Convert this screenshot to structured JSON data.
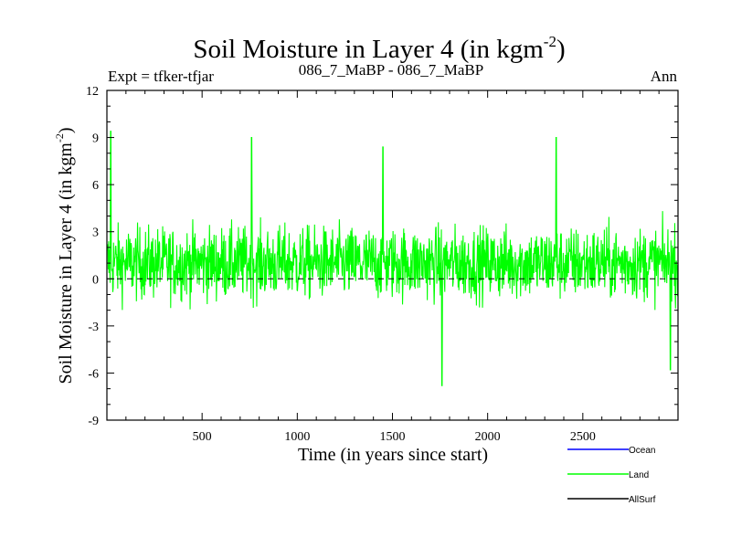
{
  "chart_data": {
    "type": "line",
    "title": "Soil Moisture in Layer 4 (in kgm",
    "title_superscript": "-2",
    "title_suffix": ")",
    "subtitle": "086_7_MaBP - 086_7_MaBP",
    "left_label": "Expt = tfker-tfjar",
    "right_label": "Ann",
    "xlabel": "Time (in years since start)",
    "ylabel": "Soil Moisture in Layer 4 (in kgm",
    "ylabel_superscript": "-2",
    "ylabel_suffix": ")",
    "xlim": [
      0,
      3000
    ],
    "ylim": [
      -9,
      12
    ],
    "x_ticks": [
      500,
      1000,
      1500,
      2000,
      2500
    ],
    "x_tick_labels": [
      "500",
      "1000",
      "1500",
      "2000",
      "2500"
    ],
    "y_ticks": [
      -9,
      -6,
      -3,
      0,
      3,
      6,
      9,
      12
    ],
    "y_tick_labels": [
      "-9",
      "-6",
      "-3",
      "0",
      "3",
      "6",
      "9",
      "12"
    ],
    "zero_line": "dashed",
    "grid": false,
    "legend_position": "bottom-right",
    "series": [
      {
        "name": "Ocean",
        "color": "#0000ff",
        "values": []
      },
      {
        "name": "Land",
        "color": "#00ff00",
        "values": "annual series, years 1-3000, approx. range -6.8 to 9.4, mean ~1"
      },
      {
        "name": "AllSurf",
        "color": "#000000",
        "values": []
      }
    ],
    "land_series_samples": {
      "x": [
        5,
        20,
        100,
        200,
        300,
        400,
        500,
        600,
        700,
        760,
        800,
        900,
        1000,
        1100,
        1200,
        1300,
        1400,
        1450,
        1500,
        1600,
        1700,
        1760,
        1800,
        1900,
        2000,
        2100,
        2200,
        2300,
        2360,
        2400,
        2500,
        2600,
        2700,
        2800,
        2900,
        2960,
        3000
      ],
      "y": [
        2,
        9.4,
        1.5,
        1,
        1.2,
        1,
        1.5,
        1.3,
        2,
        9,
        2,
        1.5,
        1,
        1.3,
        1.4,
        1.2,
        2,
        8.4,
        0.8,
        1,
        1.1,
        -6.8,
        1,
        0.9,
        1,
        1.1,
        1,
        1.2,
        9,
        1,
        1.1,
        0.8,
        1,
        1,
        0.7,
        -5.8,
        1
      ]
    }
  }
}
